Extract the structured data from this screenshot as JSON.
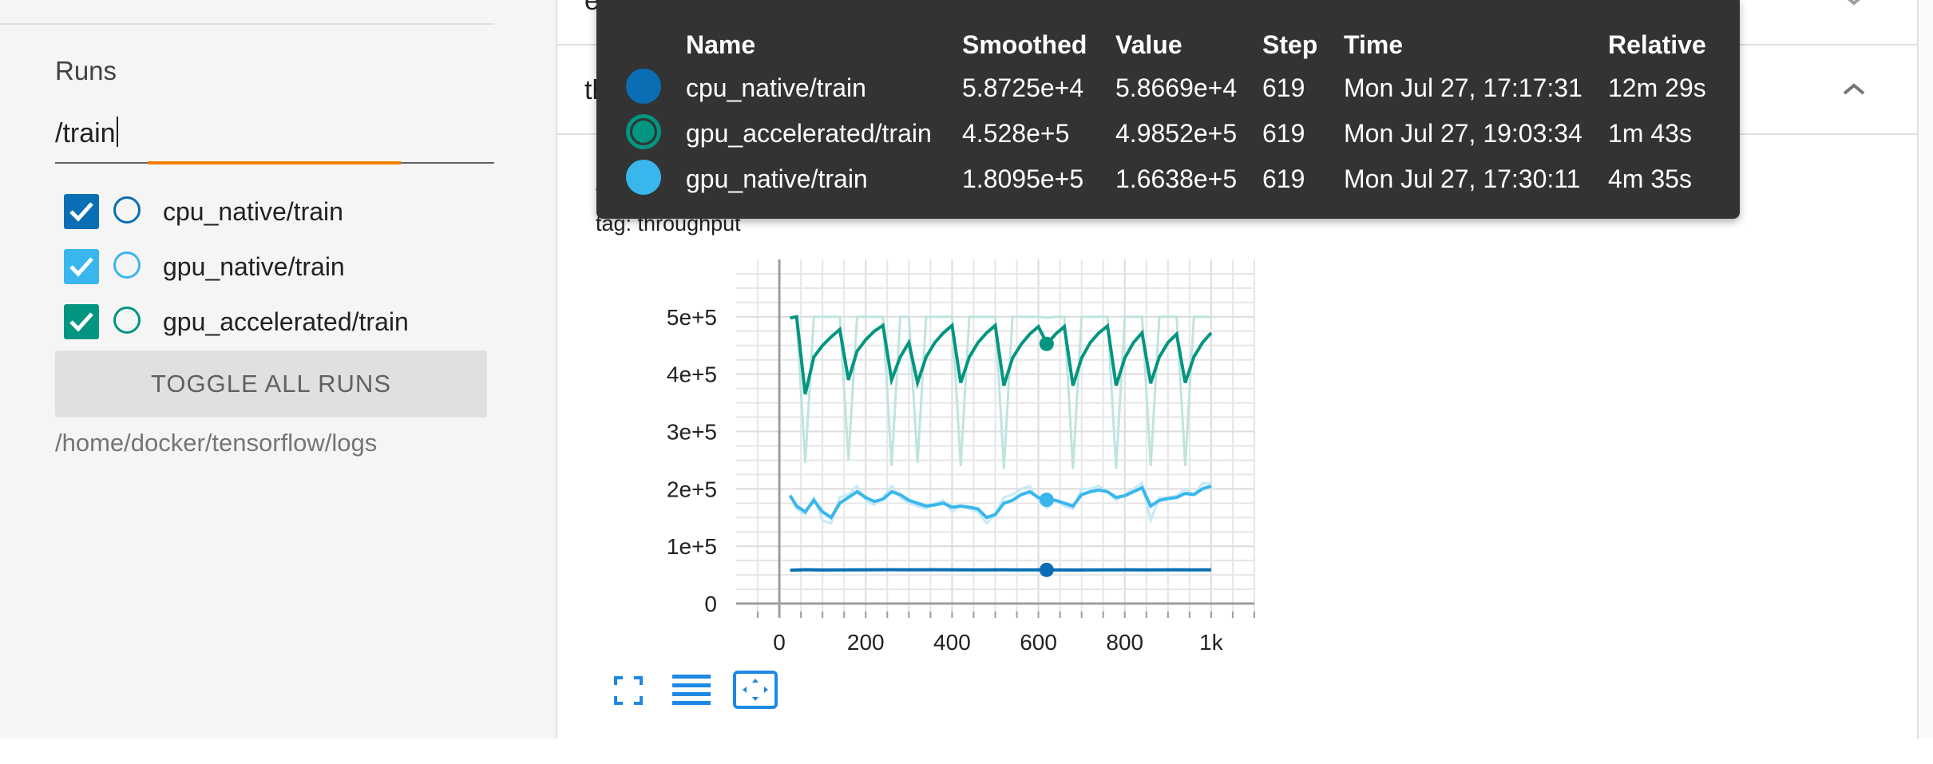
{
  "sidebar": {
    "runs_title": "Runs",
    "filter_value": "/train",
    "runs": [
      {
        "label": "cpu_native/train",
        "color": "#0a6eb4",
        "checked": true
      },
      {
        "label": "gpu_native/train",
        "color": "#39b7ed",
        "checked": true
      },
      {
        "label": "gpu_accelerated/train",
        "color": "#029580",
        "checked": true
      }
    ],
    "toggle_all_label": "TOGGLE ALL RUNS",
    "logdir": "/home/docker/tensorflow/logs"
  },
  "cards": {
    "epoch_loss_title": "epoch_loss",
    "throughput_title": "throughput"
  },
  "chart_header": {
    "title": "throughput",
    "tag": "tag: throughput"
  },
  "tooltip": {
    "headers": {
      "name": "Name",
      "smoothed": "Smoothed",
      "value": "Value",
      "step": "Step",
      "time": "Time",
      "relative": "Relative"
    },
    "rows": [
      {
        "color": "#0a6eb4",
        "filled": true,
        "name": "cpu_native/train",
        "smoothed": "5.8725e+4",
        "value": "5.8669e+4",
        "step": "619",
        "time": "Mon Jul 27, 17:17:31",
        "relative": "12m 29s"
      },
      {
        "color": "#029580",
        "filled": false,
        "name": "gpu_accelerated/train",
        "smoothed": "4.528e+5",
        "value": "4.9852e+5",
        "step": "619",
        "time": "Mon Jul 27, 19:03:34",
        "relative": "1m 43s"
      },
      {
        "color": "#39b7ed",
        "filled": true,
        "name": "gpu_native/train",
        "smoothed": "1.8095e+5",
        "value": "1.6638e+5",
        "step": "619",
        "time": "Mon Jul 27, 17:30:11",
        "relative": "4m 35s"
      }
    ]
  },
  "chart_data": {
    "type": "line",
    "title": "throughput",
    "xlabel": "",
    "ylabel": "",
    "xlim": [
      -100,
      1100
    ],
    "ylim": [
      -25000,
      600000
    ],
    "xticks": [
      0,
      200,
      400,
      600,
      800,
      1000
    ],
    "xtick_labels": [
      "0",
      "200",
      "400",
      "600",
      "800",
      "1k"
    ],
    "yticks": [
      0,
      100000,
      200000,
      300000,
      400000,
      500000
    ],
    "ytick_labels": [
      "0",
      "1e+5",
      "2e+5",
      "3e+5",
      "4e+5",
      "5e+5"
    ],
    "grid": true,
    "hover_step": 619,
    "series": [
      {
        "name": "gpu_accelerated/train",
        "color": "#029580",
        "raw_color": "#bfe4df",
        "x": [
          25,
          40,
          60,
          80,
          100,
          120,
          140,
          160,
          180,
          200,
          220,
          240,
          260,
          280,
          300,
          320,
          340,
          360,
          380,
          400,
          420,
          440,
          460,
          480,
          500,
          520,
          540,
          560,
          580,
          600,
          620,
          640,
          660,
          680,
          700,
          720,
          740,
          760,
          780,
          800,
          820,
          840,
          860,
          880,
          900,
          920,
          940,
          960,
          980,
          1000
        ],
        "y": [
          498000,
          500000,
          365000,
          430000,
          450000,
          465000,
          478000,
          390000,
          440000,
          460000,
          475000,
          485000,
          390000,
          430000,
          455000,
          385000,
          430000,
          455000,
          472000,
          485000,
          385000,
          430000,
          455000,
          472000,
          485000,
          380000,
          428000,
          452000,
          470000,
          483000,
          452800,
          470000,
          483000,
          380000,
          428000,
          455000,
          472000,
          484000,
          380000,
          428000,
          455000,
          472000,
          384000,
          430000,
          455000,
          470000,
          385000,
          430000,
          455000,
          472000
        ],
        "raw_y": [
          498000,
          500000,
          245000,
          500000,
          500000,
          500000,
          500000,
          250000,
          500000,
          500000,
          500000,
          500000,
          240000,
          500000,
          500000,
          245000,
          500000,
          500000,
          500000,
          500000,
          240000,
          500000,
          500000,
          500000,
          500000,
          235000,
          500000,
          500000,
          500000,
          500000,
          498520,
          500000,
          500000,
          235000,
          500000,
          500000,
          500000,
          500000,
          235000,
          500000,
          500000,
          500000,
          240000,
          500000,
          500000,
          500000,
          240000,
          500000,
          500000,
          500000
        ]
      },
      {
        "name": "gpu_native/train",
        "color": "#39b7ed",
        "raw_color": "#c5e9f9",
        "x": [
          25,
          40,
          60,
          80,
          100,
          120,
          140,
          160,
          180,
          200,
          220,
          240,
          260,
          280,
          300,
          320,
          340,
          360,
          380,
          400,
          420,
          440,
          460,
          480,
          500,
          520,
          540,
          560,
          580,
          600,
          620,
          640,
          660,
          680,
          700,
          720,
          740,
          760,
          780,
          800,
          820,
          840,
          860,
          880,
          900,
          920,
          940,
          960,
          980,
          1000
        ],
        "y": [
          188000,
          170000,
          160000,
          180000,
          160000,
          150000,
          175000,
          185000,
          195000,
          185000,
          178000,
          182000,
          195000,
          190000,
          180000,
          175000,
          170000,
          172000,
          175000,
          168000,
          170000,
          168000,
          165000,
          150000,
          155000,
          175000,
          180000,
          190000,
          195000,
          185000,
          180950,
          180000,
          175000,
          170000,
          190000,
          195000,
          198000,
          195000,
          185000,
          188000,
          195000,
          202000,
          170000,
          180000,
          183000,
          185000,
          192000,
          190000,
          200000,
          205000
        ],
        "raw_y": [
          190000,
          165000,
          155000,
          185000,
          145000,
          140000,
          185000,
          190000,
          205000,
          180000,
          172000,
          185000,
          205000,
          185000,
          175000,
          170000,
          165000,
          175000,
          180000,
          160000,
          170000,
          165000,
          160000,
          140000,
          155000,
          185000,
          190000,
          200000,
          205000,
          180000,
          166380,
          180000,
          170000,
          165000,
          200000,
          200000,
          205000,
          195000,
          180000,
          190000,
          200000,
          210000,
          145000,
          185000,
          185000,
          188000,
          200000,
          190000,
          210000,
          210000
        ]
      },
      {
        "name": "cpu_native/train",
        "color": "#0a6eb4",
        "raw_color": "#b3d3e9",
        "x": [
          25,
          60,
          100,
          140,
          200,
          260,
          300,
          360,
          400,
          460,
          520,
          560,
          619,
          680,
          740,
          800,
          860,
          920,
          960,
          1000
        ],
        "y": [
          58000,
          59000,
          58500,
          58700,
          58900,
          59000,
          58800,
          59000,
          58900,
          58700,
          58800,
          58700,
          58725,
          58600,
          58700,
          58800,
          58700,
          58800,
          58700,
          58800
        ],
        "raw_y": [
          58000,
          59000,
          58500,
          58700,
          58900,
          59000,
          58800,
          59000,
          58900,
          58700,
          58800,
          58700,
          58669,
          58600,
          58700,
          58800,
          58700,
          58800,
          58700,
          58800
        ]
      }
    ],
    "hover_points": [
      {
        "series": "gpu_accelerated/train",
        "x": 619,
        "y": 452800
      },
      {
        "series": "gpu_native/train",
        "x": 619,
        "y": 180950
      },
      {
        "series": "cpu_native/train",
        "x": 619,
        "y": 58725
      }
    ]
  }
}
